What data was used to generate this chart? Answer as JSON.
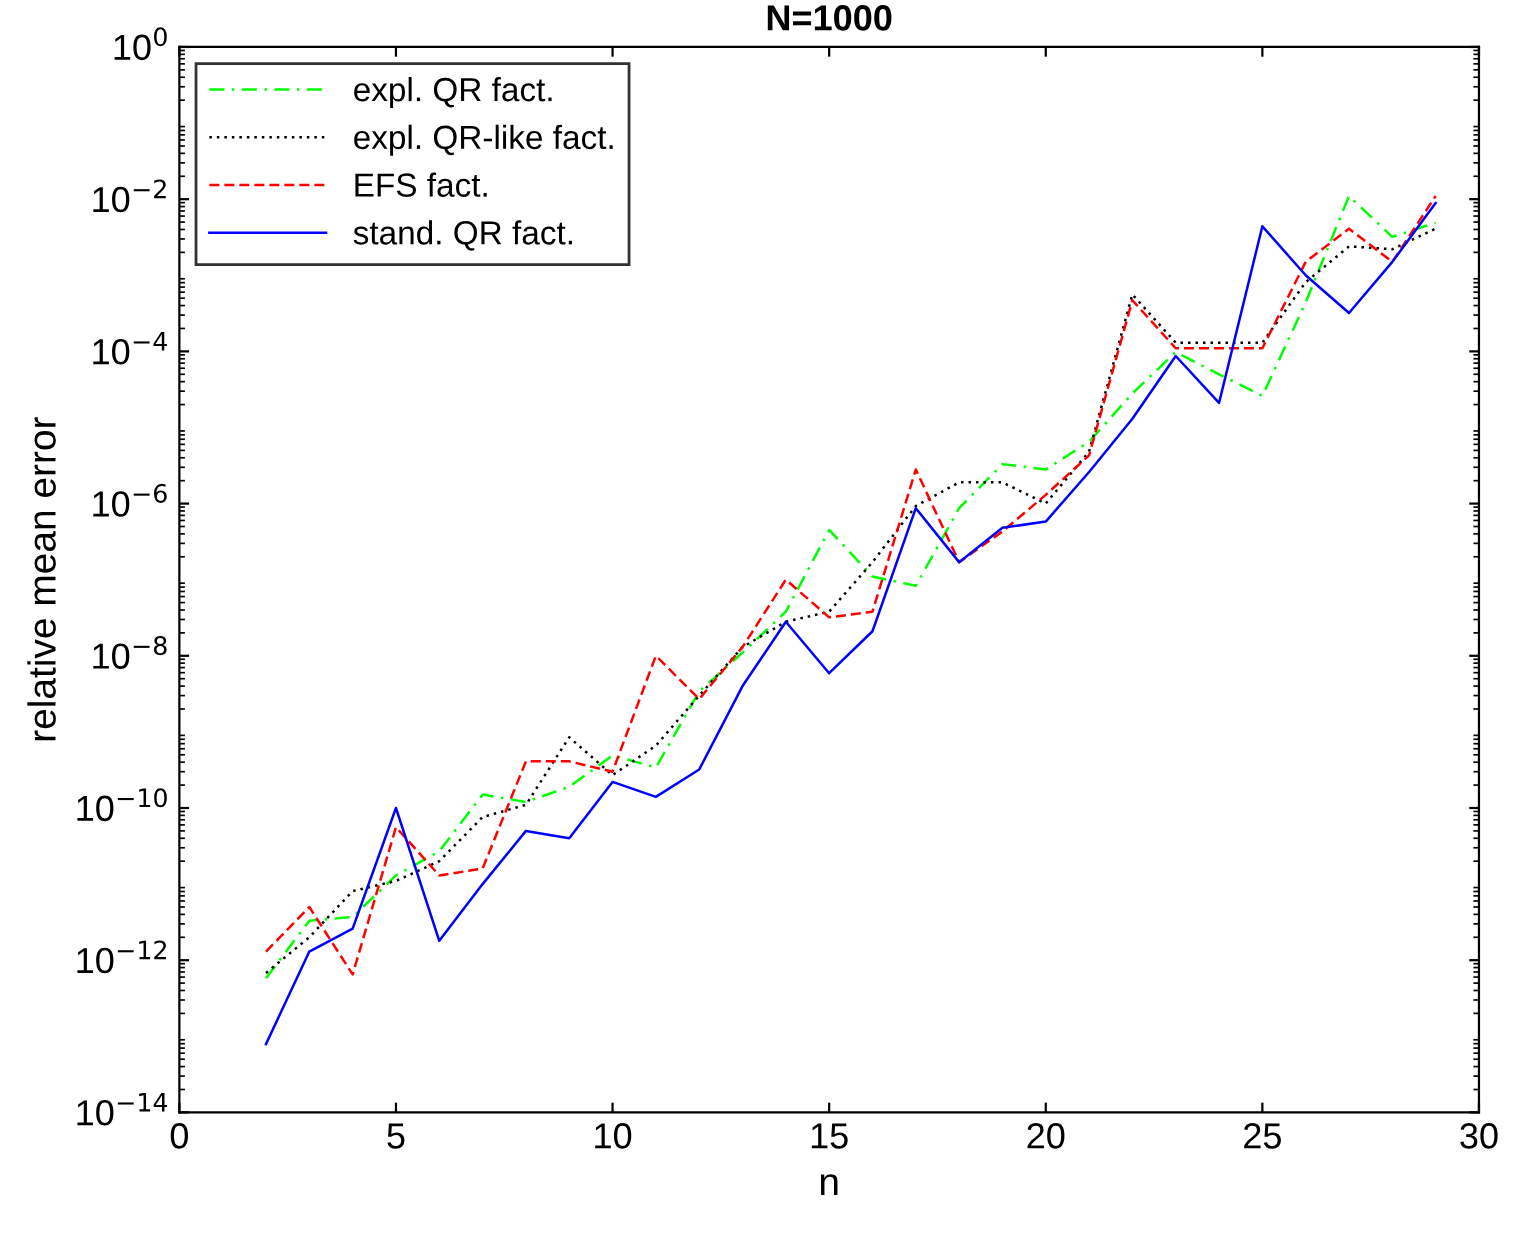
{
  "chart_data": {
    "type": "line",
    "title": "N=1000",
    "xlabel": "n",
    "ylabel": "relative mean error",
    "log": "y",
    "x": [
      2,
      3,
      4,
      5,
      6,
      7,
      8,
      9,
      10,
      11,
      12,
      13,
      14,
      15,
      16,
      17,
      18,
      19,
      20,
      21,
      22,
      23,
      24,
      25,
      26,
      27,
      28,
      29
    ],
    "xlim": [
      0,
      30
    ],
    "xticks": [
      0,
      5,
      10,
      15,
      20,
      25,
      30
    ],
    "ylim": [
      1e-14,
      1
    ],
    "yticks": [
      {
        "value": 1e-14,
        "label": "10$^{−14}$"
      },
      {
        "value": 1e-12,
        "label": "10$^{−12}$"
      },
      {
        "value": 1e-10,
        "label": "10$^{−10}$"
      },
      {
        "value": 1e-08,
        "label": "10$^{−8}$"
      },
      {
        "value": 1e-06,
        "label": "10$^{−6}$"
      },
      {
        "value": 0.0001,
        "label": "10$^{−4}$"
      },
      {
        "value": 0.01,
        "label": "10$^{−2}$"
      },
      {
        "value": 1,
        "label": "10$^{0}$"
      }
    ],
    "grid": false,
    "legend": "top left",
    "marker": "none",
    "series": [
      {
        "name": "expl. QR fact.",
        "color": "#00ff00",
        "line_style": "dashdot",
        "values": [
          5.8e-13,
          3.3e-12,
          3.7e-12,
          1.3e-11,
          2.7e-11,
          1.5e-10,
          1.2e-10,
          1.9e-10,
          4.9e-10,
          3.4e-10,
          3.4e-09,
          1.1e-08,
          3.8e-08,
          4.5e-07,
          1.1e-07,
          8.3e-08,
          8.7e-07,
          3.3e-06,
          2.8e-06,
          6.5e-06,
          2.8e-05,
          9.8e-05,
          5e-05,
          2.6e-05,
          0.00044,
          0.011,
          0.0032,
          0.0049
        ]
      },
      {
        "name": "expl. QR-like fact.",
        "color": "#000000",
        "line_style": "dotted",
        "values": [
          6.8e-13,
          2e-12,
          8.1e-12,
          1.1e-11,
          2e-11,
          7.6e-11,
          1.1e-10,
          8.5e-10,
          2.7e-10,
          6.6e-10,
          3e-09,
          1.3e-08,
          2.8e-08,
          3.8e-08,
          1.7e-07,
          9.3e-07,
          1.9e-06,
          1.9e-06,
          1e-06,
          4.8e-06,
          0.00056,
          0.00013,
          0.00013,
          0.00013,
          0.00081,
          0.0024,
          0.0022,
          0.0041
        ]
      },
      {
        "name": "EFS fact.",
        "color": "#ff0000",
        "line_style": "dashed",
        "values": [
          1.3e-12,
          5e-12,
          6.5e-13,
          5.6e-11,
          1.3e-11,
          1.6e-11,
          4.1e-10,
          4.1e-10,
          3e-10,
          1e-08,
          2.7e-09,
          1.3e-08,
          1e-07,
          3.2e-08,
          3.8e-08,
          2.8e-06,
          1.7e-07,
          4.3e-07,
          1.3e-06,
          4.3e-06,
          0.00047,
          0.00011,
          0.00011,
          0.00011,
          0.0015,
          0.0041,
          0.0015,
          0.011
        ]
      },
      {
        "name": "stand. QR fact.",
        "color": "#0000ff",
        "line_style": "solid",
        "values": [
          7.9e-14,
          1.3e-12,
          2.6e-12,
          1e-10,
          1.8e-12,
          1e-11,
          5e-11,
          4e-11,
          2.2e-10,
          1.4e-10,
          3.2e-10,
          4e-09,
          2.8e-08,
          5.9e-09,
          2.1e-08,
          8.7e-07,
          1.7e-07,
          4.8e-07,
          5.8e-07,
          2.6e-06,
          1.3e-05,
          8.7e-05,
          2.1e-05,
          0.0044,
          0.001,
          0.00032,
          0.0015,
          0.0089
        ]
      }
    ]
  }
}
